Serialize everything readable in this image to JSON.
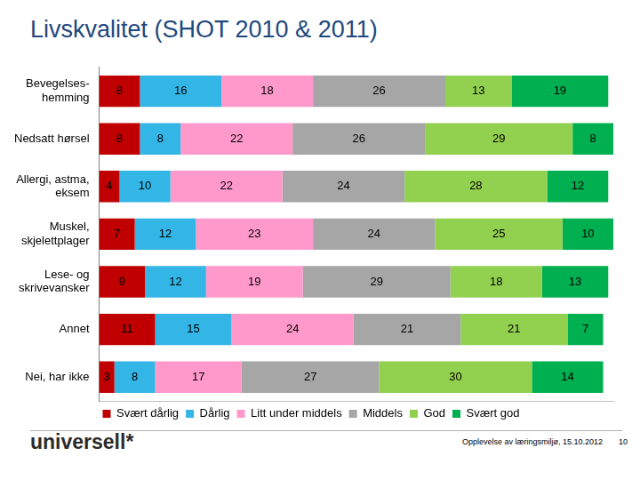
{
  "chart_data": {
    "type": "bar",
    "title": "Livskvalitet (SHOT 2010 & 2011)",
    "orientation": "horizontal",
    "stacked": true,
    "data_labels": true,
    "grid": false,
    "tick_labels": "y",
    "legend": "bottom",
    "categories": [
      "Bevegelses-\nhemming",
      "Nedsatt hørsel",
      "Allergi, astma,\neksem",
      "Muskel,\nskjelettplager",
      "Lese- og\nskrivevansker",
      "Annet",
      "Nei, har ikke"
    ],
    "xlim": [
      0,
      101
    ],
    "xticks": [],
    "series": [
      {
        "name": "Svært dårlig",
        "color": "#c00000",
        "values": [
          8,
          8,
          4,
          7,
          9,
          11,
          3
        ]
      },
      {
        "name": "Dårlig",
        "color": "#33b5e5",
        "values": [
          16,
          8,
          10,
          12,
          12,
          15,
          8
        ]
      },
      {
        "name": "Litt under middels",
        "color": "#ff99cc",
        "values": [
          18,
          22,
          22,
          23,
          19,
          24,
          17
        ]
      },
      {
        "name": "Middels",
        "color": "#a6a6a6",
        "values": [
          26,
          26,
          24,
          24,
          29,
          21,
          27
        ]
      },
      {
        "name": "God",
        "color": "#92d050",
        "values": [
          13,
          29,
          28,
          25,
          18,
          21,
          30
        ]
      },
      {
        "name": "Svært god",
        "color": "#00b050",
        "values": [
          19,
          8,
          12,
          10,
          13,
          7,
          14
        ]
      }
    ]
  },
  "footer": {
    "logo": "universell*",
    "note": "Opplevelse av læringsmiljø, 15.10.2012",
    "page": "10"
  }
}
